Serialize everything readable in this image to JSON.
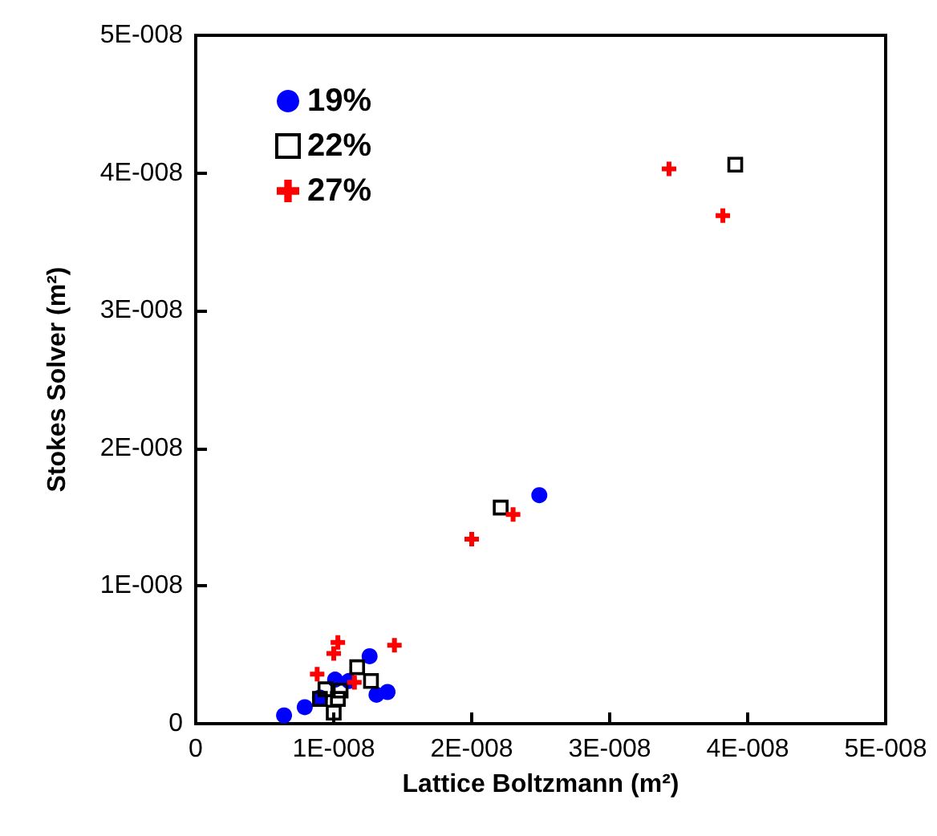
{
  "chart_data": {
    "type": "scatter",
    "xlabel": "Lattice Boltzmann (m²)",
    "ylabel": "Stokes Solver (m²)",
    "xlim": [
      0,
      5e-08
    ],
    "ylim": [
      0,
      5e-08
    ],
    "xticks": [
      0,
      {
        "value": 1e-08,
        "label": "1E-008"
      },
      {
        "value": 2e-08,
        "label": "2E-008"
      },
      {
        "value": 3e-08,
        "label": "3E-008"
      },
      {
        "value": 4e-08,
        "label": "4E-008"
      },
      {
        "value": 5e-08,
        "label": "5E-008"
      }
    ],
    "yticks": [
      0,
      {
        "value": 1e-08,
        "label": "1E-008"
      },
      {
        "value": 2e-08,
        "label": "2E-008"
      },
      {
        "value": 3e-08,
        "label": "3E-008"
      },
      {
        "value": 4e-08,
        "label": "4E-008"
      },
      {
        "value": 5e-08,
        "label": "5E-008"
      }
    ],
    "grid": false,
    "legend": "top left",
    "series": [
      {
        "name": "19%",
        "color": "#0000ff",
        "marker": "circle",
        "x": [
          6.4e-09,
          7.9e-09,
          9e-09,
          1.01e-08,
          1.11e-08,
          1.26e-08,
          1.31e-08,
          1.39e-08,
          2.49e-08
        ],
        "values": [
          6e-10,
          1.2e-09,
          1.9e-09,
          3.2e-09,
          3.1e-09,
          4.9e-09,
          2.1e-09,
          2.3e-09,
          1.66e-08
        ]
      },
      {
        "name": "22%",
        "color": "#000000",
        "marker": "square",
        "x": [
          9e-09,
          9.4e-09,
          1.05e-08,
          1.03e-08,
          1e-08,
          1.17e-08,
          1.27e-08,
          2.21e-08,
          3.91e-08
        ],
        "values": [
          1.8e-09,
          2.5e-09,
          2.4e-09,
          1.8e-09,
          8e-10,
          4.1e-09,
          3.1e-09,
          1.57e-08,
          4.06e-08
        ]
      },
      {
        "name": "27%",
        "color": "#ff0000",
        "marker": "cross",
        "x": [
          1.03e-08,
          1e-08,
          8.8e-09,
          1.15e-08,
          1.44e-08,
          2e-08,
          2.3e-08,
          3.43e-08,
          3.82e-08
        ],
        "values": [
          5.9e-09,
          5.1e-09,
          3.6e-09,
          3e-09,
          5.7e-09,
          1.34e-08,
          1.52e-08,
          4.03e-08,
          3.69e-08
        ]
      }
    ]
  }
}
